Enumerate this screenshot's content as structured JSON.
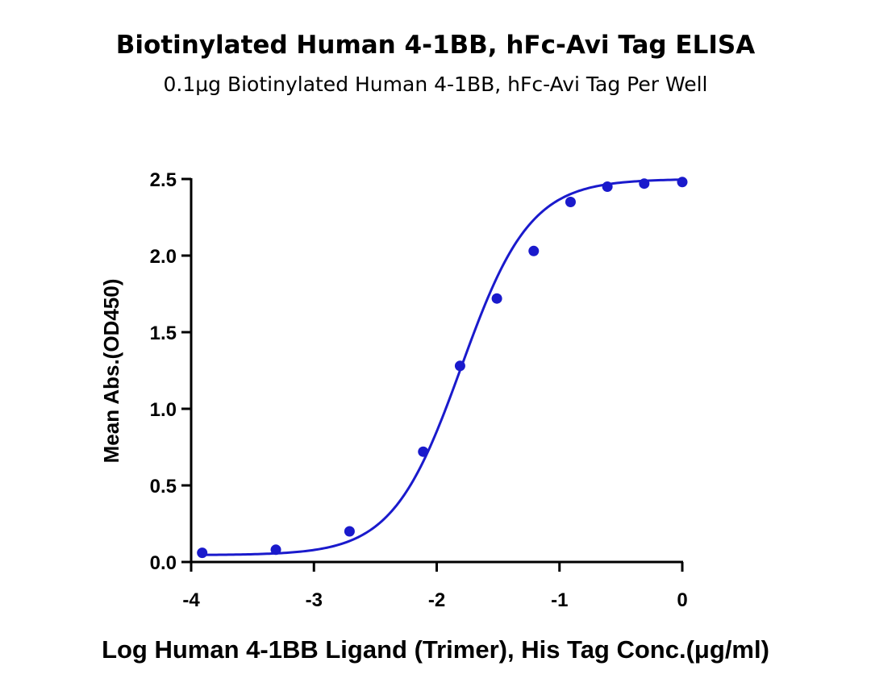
{
  "chart_data": {
    "type": "scatter",
    "title": "Biotinylated Human 4-1BB, hFc-Avi Tag ELISA",
    "subtitle": "0.1μg Biotinylated Human 4-1BB, hFc-Avi Tag Per Well",
    "xlabel": "Log Human 4-1BB Ligand (Trimer), His Tag Conc.(μg/ml)",
    "ylabel": "Mean Abs.(OD450)",
    "xlim": [
      -4,
      0
    ],
    "ylim": [
      0,
      2.5
    ],
    "xticks": [
      "-4",
      "-3",
      "-2",
      "-1",
      "0"
    ],
    "yticks": [
      "0.0",
      "0.5",
      "1.0",
      "1.5",
      "2.0",
      "2.5"
    ],
    "grid": false,
    "series": [
      {
        "x": [
          -3.91,
          -3.31,
          -2.71,
          -2.11,
          -1.81,
          -1.51,
          -1.21,
          -0.91,
          -0.61,
          -0.31,
          0.0
        ],
        "y": [
          0.06,
          0.08,
          0.2,
          0.72,
          1.28,
          1.72,
          2.03,
          2.35,
          2.45,
          2.47,
          2.48
        ],
        "color": "#1a1acc"
      }
    ],
    "fit_curve": {
      "model": "4PL",
      "bottom": 0.045,
      "top": 2.5,
      "logEC50": -1.8,
      "hill": 1.55,
      "color": "#1a1acc"
    }
  }
}
